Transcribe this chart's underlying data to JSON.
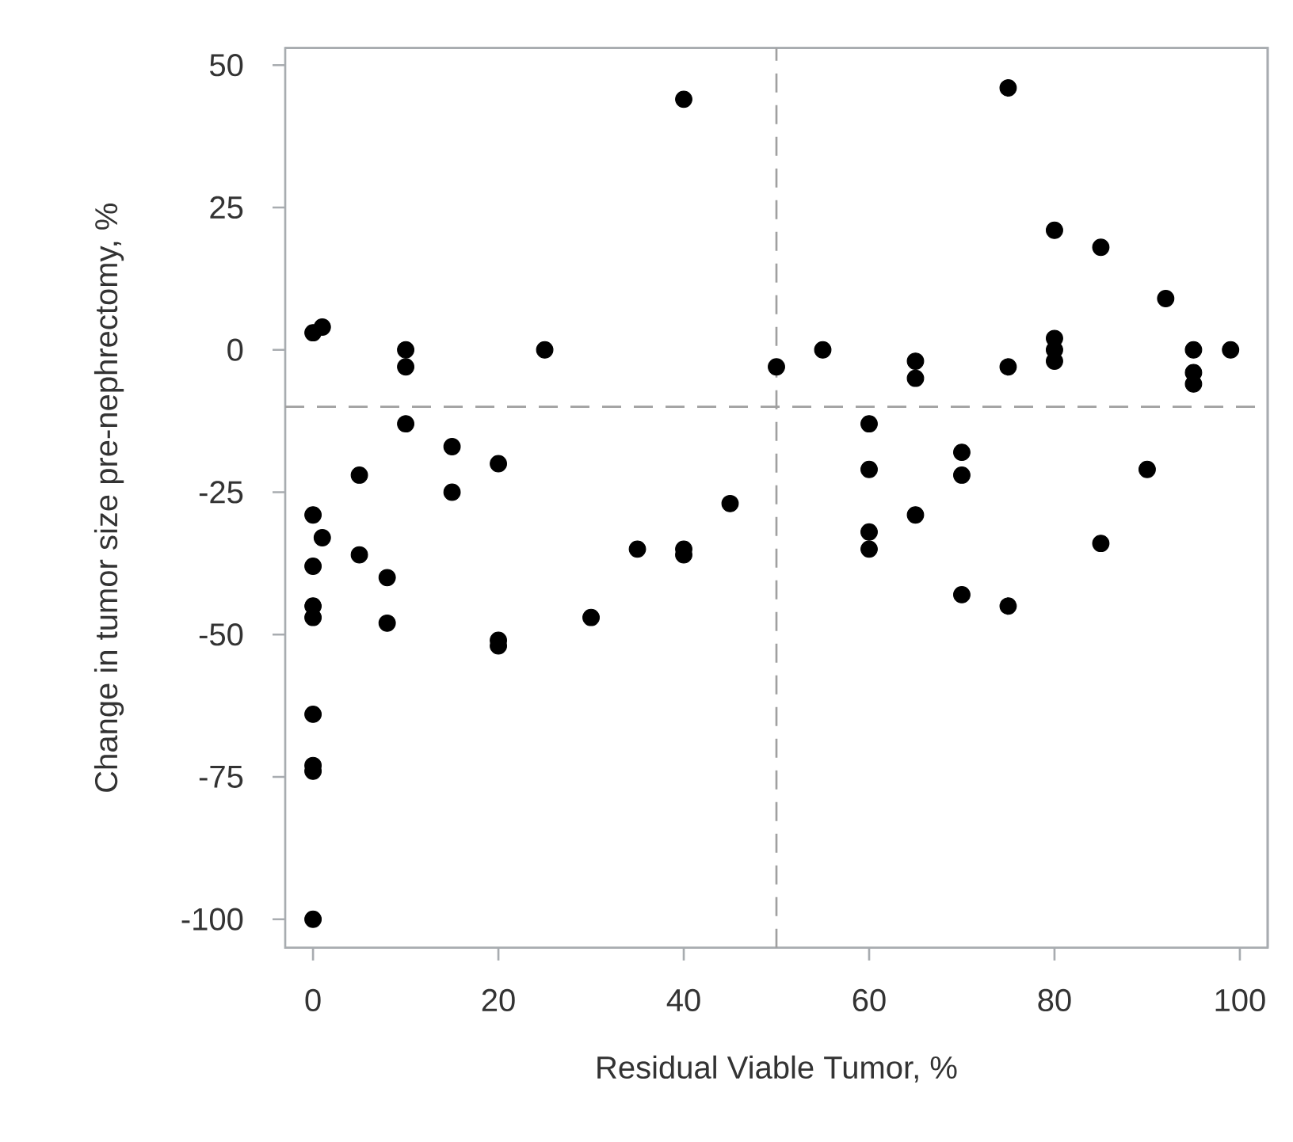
{
  "chart_data": {
    "type": "scatter",
    "xlabel": "Residual Viable Tumor, %",
    "ylabel": "Change in tumor size pre-nephrectomy, %",
    "xlim": [
      -3,
      103
    ],
    "ylim": [
      -105,
      53
    ],
    "xticks": [
      0,
      20,
      40,
      60,
      80,
      100
    ],
    "yticks": [
      -100,
      -75,
      -50,
      -25,
      0,
      25,
      50
    ],
    "grid": false,
    "marker": "circle",
    "series": [
      {
        "color": "#000000",
        "x": [
          0,
          1,
          0,
          1,
          0,
          0,
          0,
          0,
          0,
          0,
          0,
          5,
          5,
          8,
          8,
          10,
          10,
          10,
          15,
          15,
          20,
          20,
          20,
          25,
          30,
          35,
          40,
          40,
          40,
          45,
          50,
          55,
          60,
          60,
          60,
          60,
          65,
          65,
          65,
          70,
          70,
          70,
          75,
          75,
          75,
          80,
          80,
          80,
          80,
          85,
          85,
          90,
          92,
          95,
          95,
          95,
          99
        ],
        "values": [
          3,
          4,
          -29,
          -33,
          -38,
          -45,
          -47,
          -64,
          -73,
          -74,
          -100,
          -22,
          -36,
          -40,
          -48,
          0,
          -3,
          -13,
          -17,
          -25,
          -20,
          -51,
          -52,
          0,
          -47,
          -35,
          44,
          -35,
          -36,
          -27,
          -3,
          0,
          -13,
          -21,
          -32,
          -35,
          -2,
          -5,
          -29,
          -18,
          -22,
          -43,
          46,
          -3,
          -45,
          21,
          2,
          0,
          -2,
          18,
          -34,
          -21,
          9,
          0,
          -4,
          -6,
          0
        ]
      }
    ],
    "ref_lines": [
      {
        "axis": "x",
        "value": 50,
        "color": "#a0a0a0",
        "line_style": "dashed"
      },
      {
        "axis": "y",
        "value": -10,
        "color": "#a0a0a0",
        "line_style": "dashed"
      }
    ]
  }
}
